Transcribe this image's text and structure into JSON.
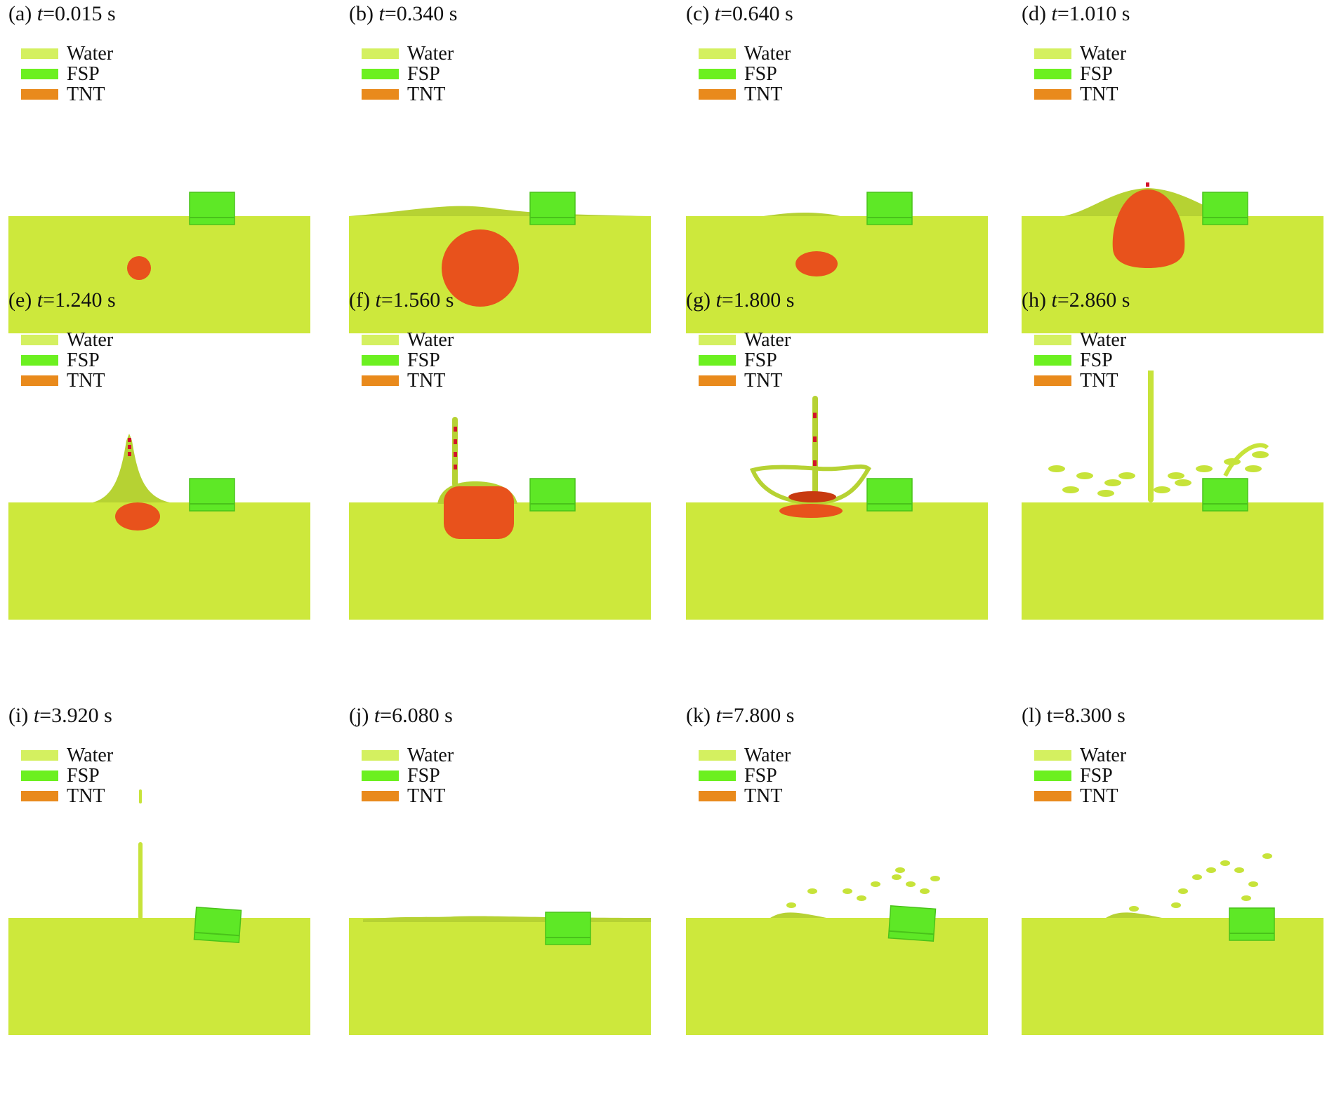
{
  "legend": {
    "items": [
      {
        "label": "Water",
        "color": "#d4f060"
      },
      {
        "label": "FSP",
        "color": "#6cf020"
      },
      {
        "label": "TNT",
        "color": "#e98a1c"
      }
    ]
  },
  "colors": {
    "water": "#cde83c",
    "water_dark": "#b6d233",
    "fsp": "#5ee826",
    "fsp_edge": "#49c21a",
    "tnt": "#e8521c",
    "tnt_dark": "#c83a10",
    "debris": "#c7e33a",
    "red_dots": "#d3122a"
  },
  "panels": [
    {
      "letter": "(a)",
      "t_var": "t",
      "t_value": "=0.015 s",
      "stage": "small-bubble"
    },
    {
      "letter": "(b)",
      "t_var": "t",
      "t_value": "=0.340 s",
      "stage": "large-bubble"
    },
    {
      "letter": "(c)",
      "t_var": "t",
      "t_value": "=0.640 s",
      "stage": "collapsed-bubble"
    },
    {
      "letter": "(d)",
      "t_var": "t",
      "t_value": "=1.010 s",
      "stage": "rising-bubble"
    },
    {
      "letter": "(e)",
      "t_var": "t",
      "t_value": "=1.240 s",
      "stage": "plume-small"
    },
    {
      "letter": "(f)",
      "t_var": "t",
      "t_value": "=1.560 s",
      "stage": "plume-large"
    },
    {
      "letter": "(g)",
      "t_var": "t",
      "t_value": "=1.800 s",
      "stage": "crown"
    },
    {
      "letter": "(h)",
      "t_var": "t",
      "t_value": "=2.860 s",
      "stage": "spray"
    },
    {
      "letter": "(i)",
      "t_var": "t",
      "t_value": "=3.920 s",
      "stage": "thin-jet"
    },
    {
      "letter": "(j)",
      "t_var": "t",
      "t_value": "=6.080 s",
      "stage": "calm"
    },
    {
      "letter": "(k)",
      "t_var": "t",
      "t_value": "=7.800 s",
      "stage": "droplets"
    },
    {
      "letter": "(l)",
      "t_var": "",
      "t_value": "t=8.300 s",
      "stage": "droplets-late"
    }
  ]
}
